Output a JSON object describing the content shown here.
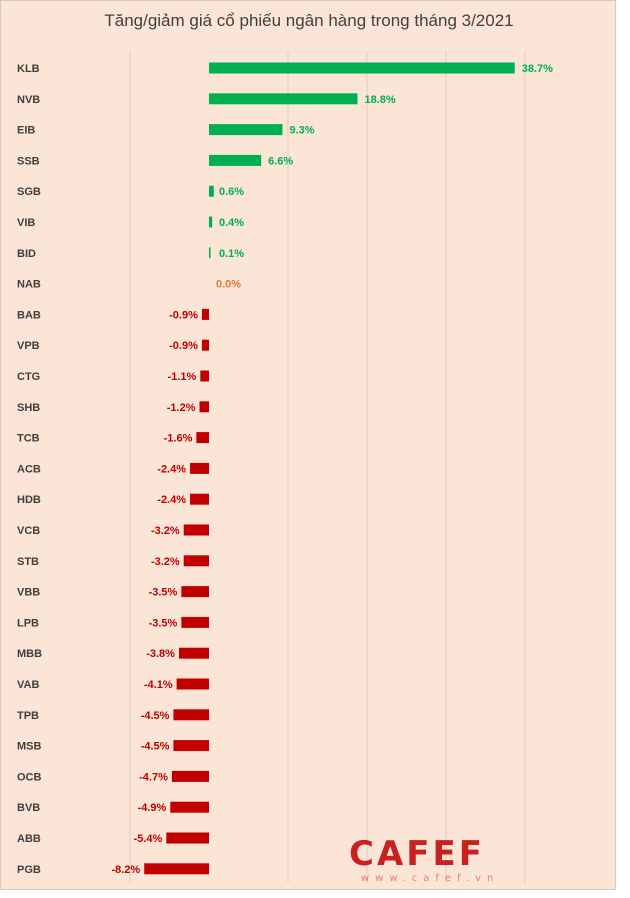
{
  "chart_data": {
    "type": "bar",
    "orientation": "horizontal",
    "title": "Tăng/giảm giá cổ phiếu ngân hàng trong tháng 3/2021",
    "xlabel": "",
    "ylabel": "",
    "grid": true,
    "xlim": [
      -10,
      40
    ],
    "categories": [
      "KLB",
      "NVB",
      "EIB",
      "SSB",
      "SGB",
      "VIB",
      "BID",
      "NAB",
      "BAB",
      "VPB",
      "CTG",
      "SHB",
      "TCB",
      "ACB",
      "HDB",
      "VCB",
      "STB",
      "VBB",
      "LPB",
      "MBB",
      "VAB",
      "TPB",
      "MSB",
      "OCB",
      "BVB",
      "ABB",
      "PGB"
    ],
    "values": [
      38.7,
      18.8,
      9.3,
      6.6,
      0.6,
      0.4,
      0.1,
      0.0,
      -0.9,
      -0.9,
      -1.1,
      -1.2,
      -1.6,
      -2.4,
      -2.4,
      -3.2,
      -3.2,
      -3.5,
      -3.5,
      -3.8,
      -4.1,
      -4.5,
      -4.5,
      -4.7,
      -4.9,
      -5.4,
      -8.2
    ],
    "labels": [
      "38.7%",
      "18.8%",
      "9.3%",
      "6.6%",
      "0.6%",
      "0.4%",
      "0.1%",
      "0.0%",
      "-0.9%",
      "-0.9%",
      "-1.1%",
      "-1.2%",
      "-1.6%",
      "-2.4%",
      "-2.4%",
      "-3.2%",
      "-3.2%",
      "-3.5%",
      "-3.5%",
      "-3.8%",
      "-4.1%",
      "-4.5%",
      "-4.5%",
      "-4.7%",
      "-4.9%",
      "-5.4%",
      "-8.2%"
    ],
    "colors": {
      "positive": "#00b050",
      "negative": "#c00000",
      "zero": "#e07b39",
      "grid": "#e6ccbc",
      "axis_text": "#404040"
    }
  },
  "watermark": {
    "logo": "CAFEF",
    "url": "www.cafef.vn"
  }
}
